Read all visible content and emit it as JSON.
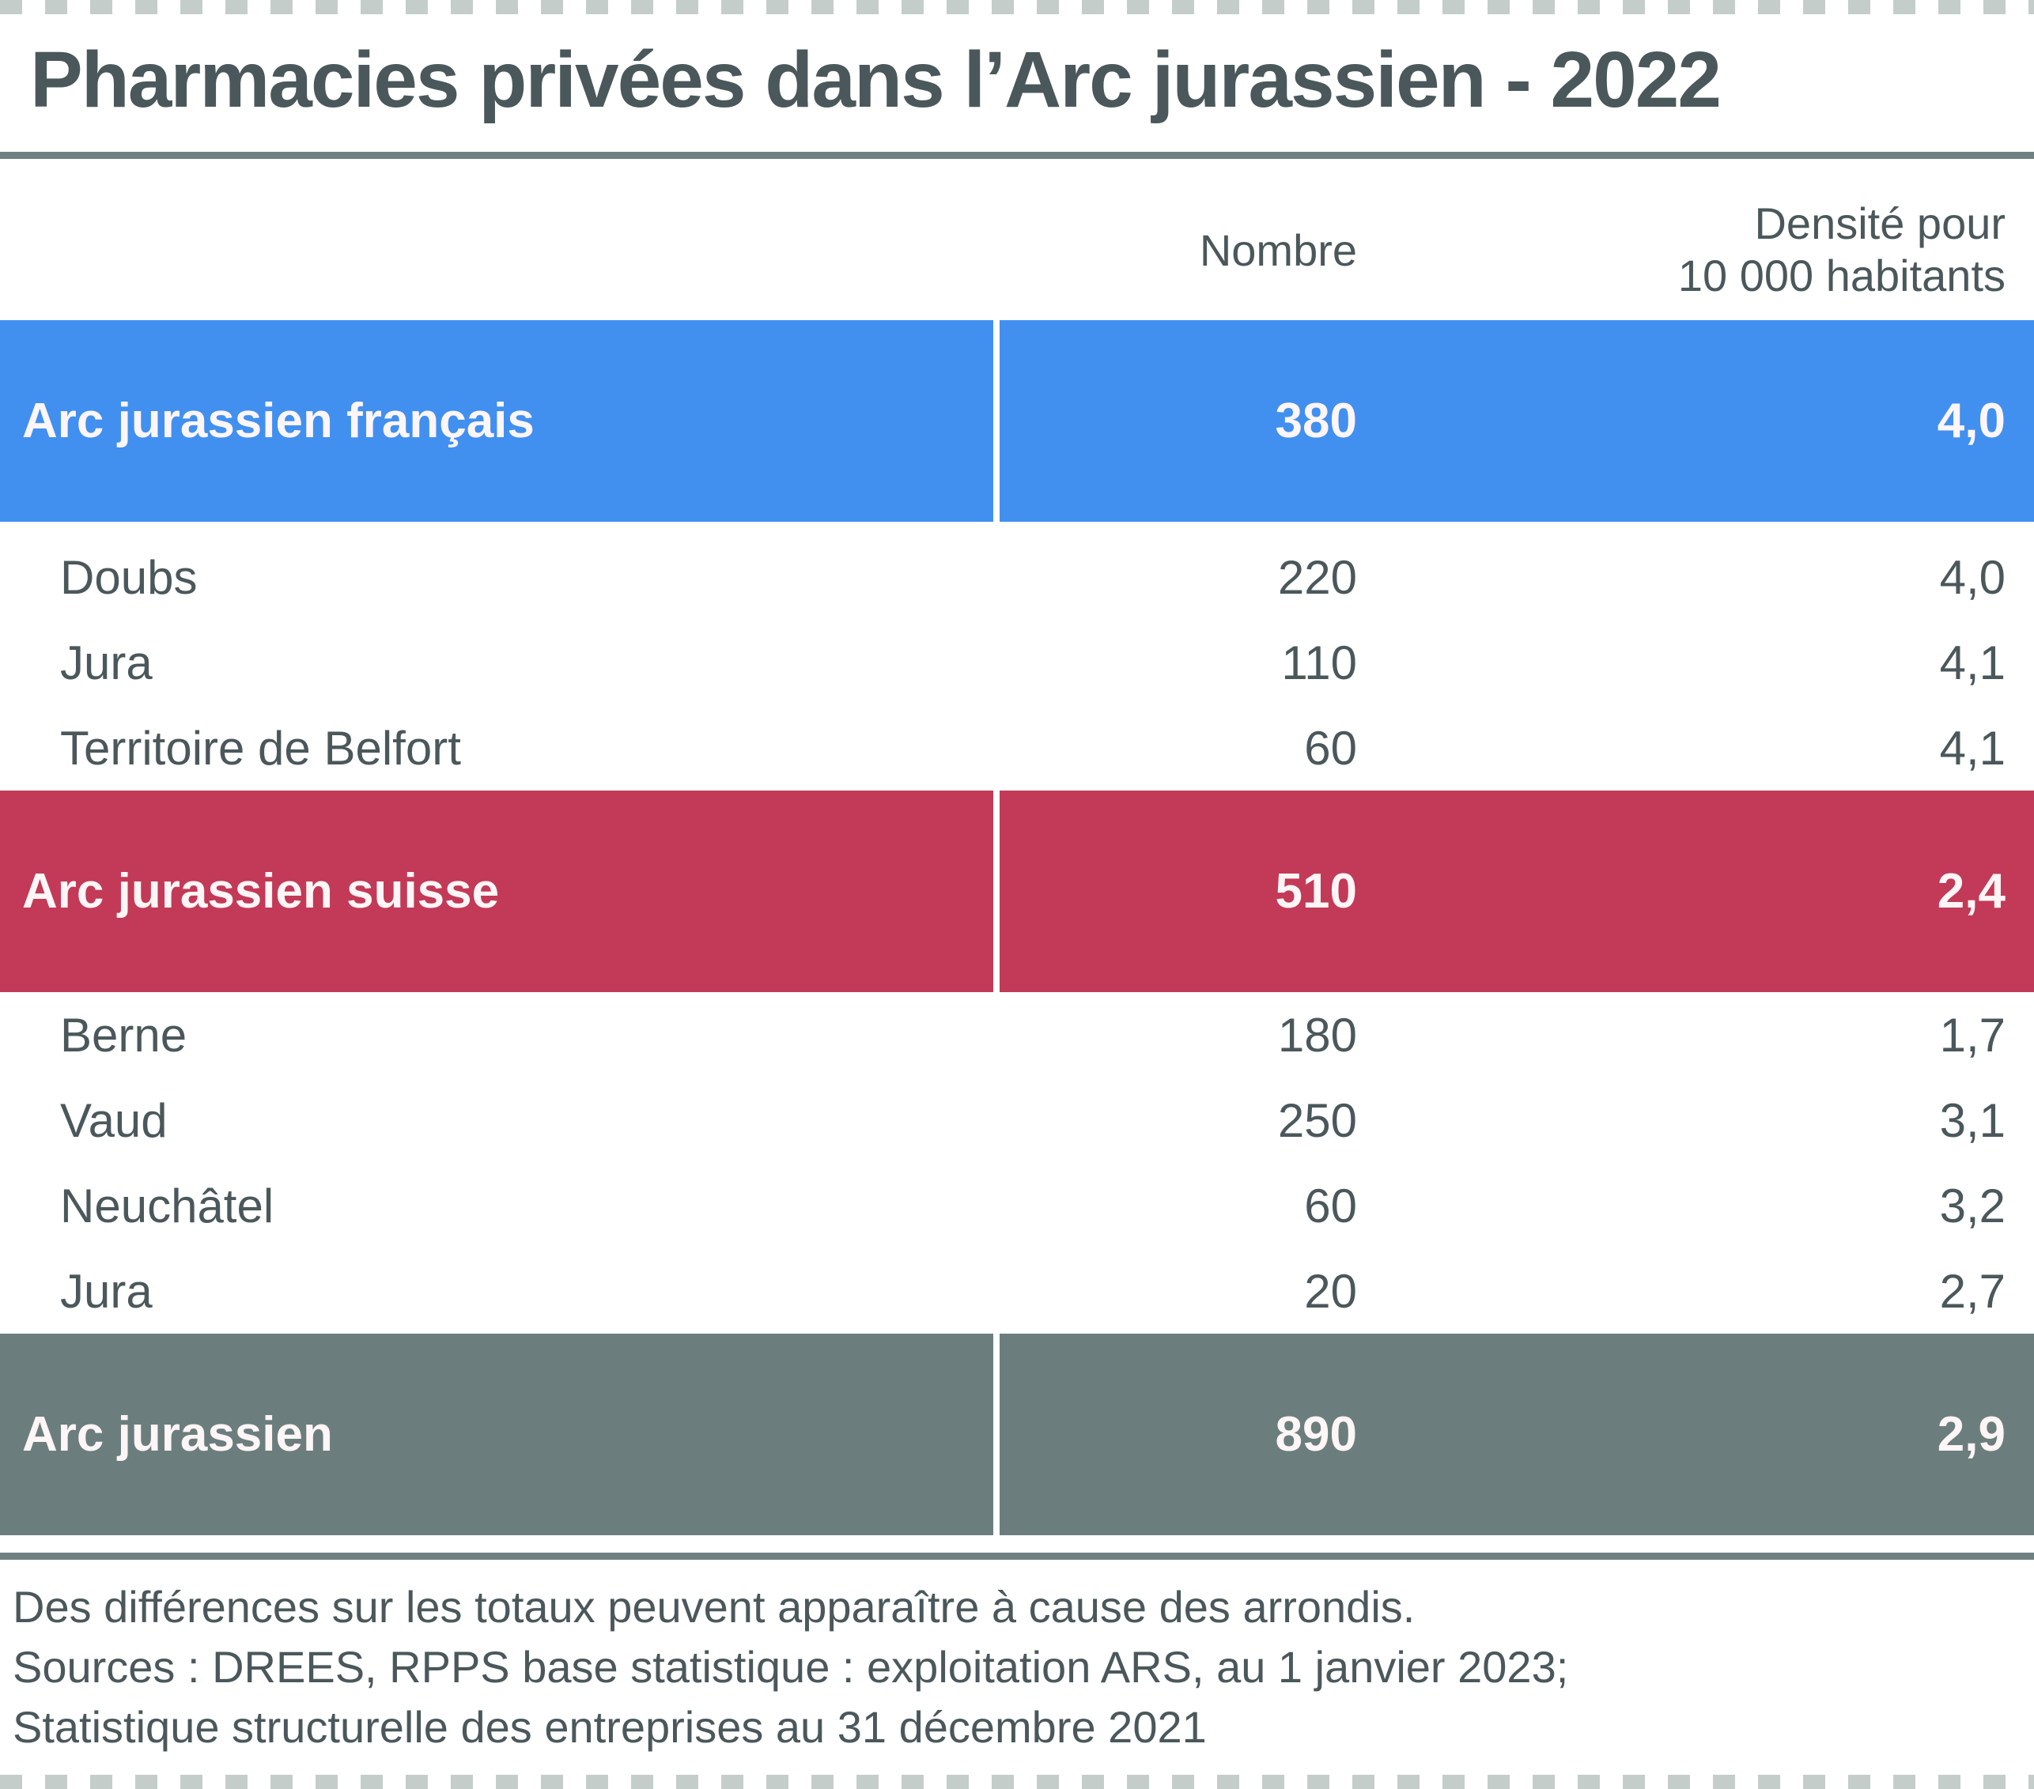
{
  "chart_data": {
    "type": "table",
    "title": "Pharmacies privées dans l’Arc jurassien - 2022",
    "header": {
      "nombre": "Nombre",
      "densite_line1": "Densité pour",
      "densite_line2": "10 000 habitants"
    },
    "columns": [
      "",
      "Nombre",
      "Densité pour 10 000 habitants"
    ],
    "rows": [
      {
        "kind": "section",
        "color": "blue",
        "label": "Arc jurassien français",
        "nombre": 380,
        "densite": "4,0"
      },
      {
        "kind": "detail",
        "label": "Doubs",
        "nombre": 220,
        "densite": "4,0"
      },
      {
        "kind": "detail",
        "label": "Jura",
        "nombre": 110,
        "densite": "4,1"
      },
      {
        "kind": "detail",
        "label": "Territoire de Belfort",
        "nombre": 60,
        "densite": "4,1"
      },
      {
        "kind": "section",
        "color": "red",
        "label": "Arc jurassien suisse",
        "nombre": 510,
        "densite": "2,4"
      },
      {
        "kind": "detail",
        "label": "Berne",
        "nombre": 180,
        "densite": "1,7"
      },
      {
        "kind": "detail",
        "label": "Vaud",
        "nombre": 250,
        "densite": "3,1"
      },
      {
        "kind": "detail",
        "label": "Neuchâtel",
        "nombre": 60,
        "densite": "3,2"
      },
      {
        "kind": "detail",
        "label": "Jura",
        "nombre": 20,
        "densite": "2,7"
      },
      {
        "kind": "section",
        "color": "gray",
        "label": "Arc jurassien",
        "nombre": 890,
        "densite": "2,9"
      }
    ],
    "notes": [
      "Des différences sur les totaux peuvent apparaître à cause des arrondis.",
      "Sources : DREES, RPPS base statistique : exploitation ARS, au 1 janvier 2023;",
      "Statistique structurelle des entreprises au 31 décembre 2021"
    ],
    "legend_position": "none",
    "grid": false
  },
  "colors": {
    "blue": "#4190f0",
    "red": "#c23a57",
    "gray": "#6b7e7d",
    "ink": "#4b585b",
    "light": "#fdf5f6",
    "dash": "#c5cdcb",
    "rule": "#6f8081"
  }
}
